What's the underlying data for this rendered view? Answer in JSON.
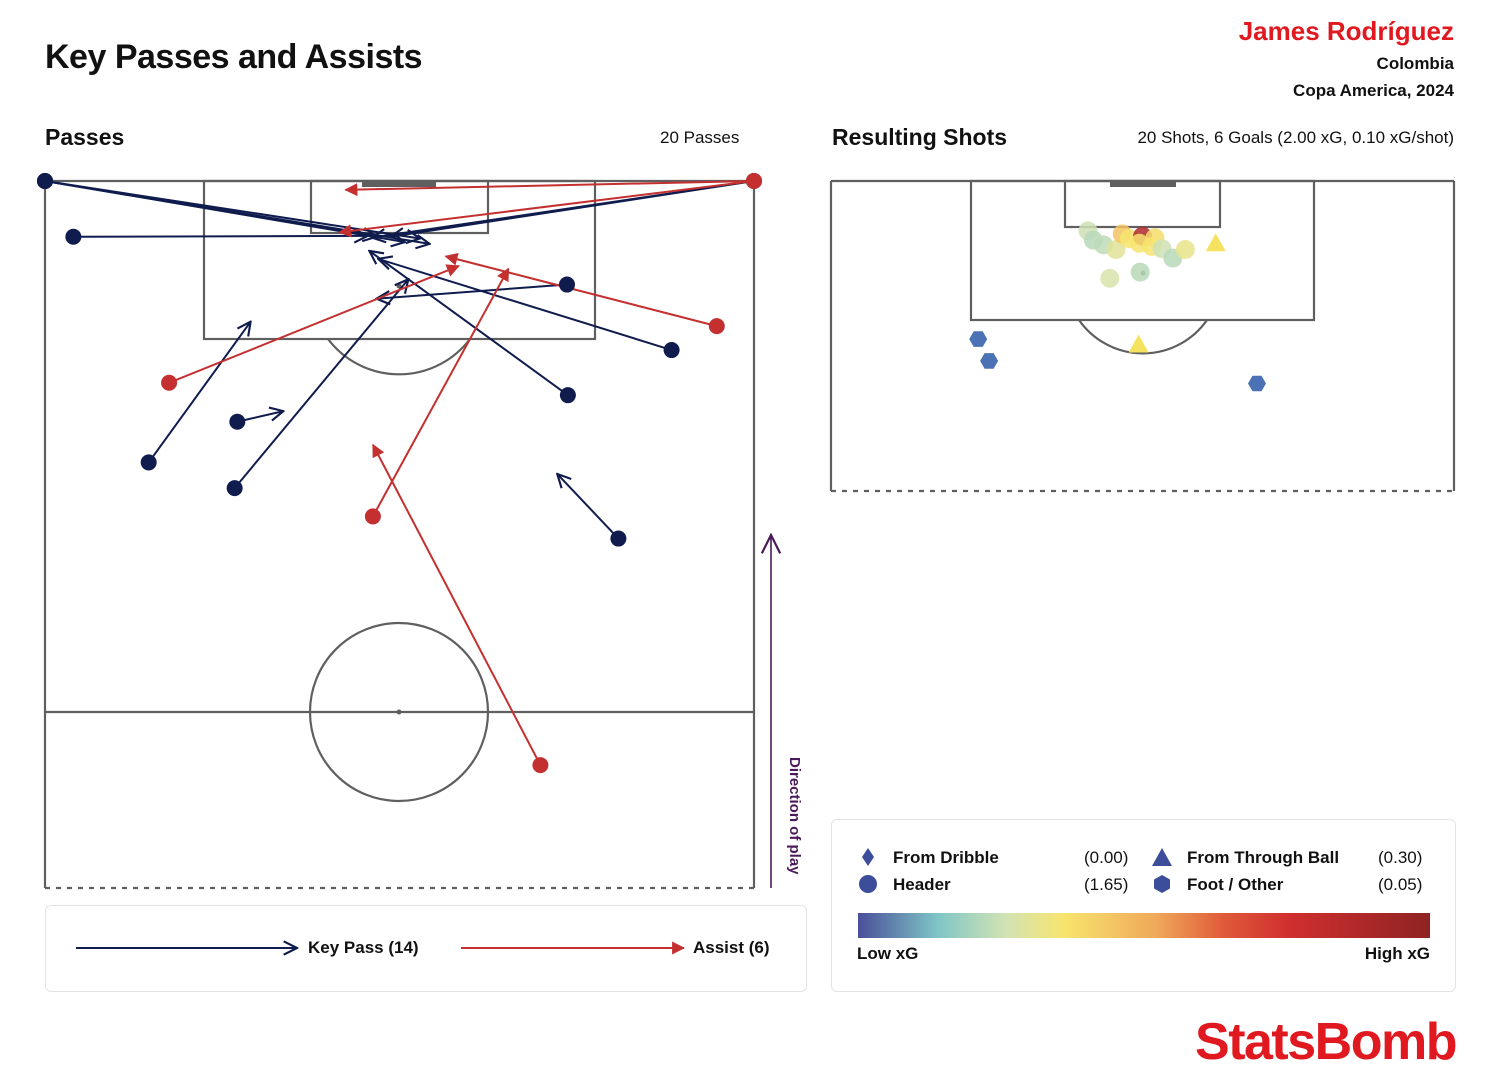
{
  "header": {
    "title": "Key Passes and Assists",
    "player": "James Rodríguez",
    "team": "Colombia",
    "competition": "Copa America, 2024"
  },
  "passes_panel": {
    "title": "Passes",
    "count_label": "20 Passes",
    "direction_label": "Direction of play"
  },
  "shots_panel": {
    "title": "Resulting Shots",
    "summary": "20 Shots, 6 Goals (2.00 xG, 0.10 xG/shot)"
  },
  "pass_legend": {
    "key_pass_label": "Key Pass (14)",
    "assist_label": "Assist (6)"
  },
  "shot_legend": {
    "from_dribble": {
      "label": "From Dribble",
      "value": "(0.00)"
    },
    "header": {
      "label": "Header",
      "value": "(1.65)"
    },
    "from_through_ball": {
      "label": "From Through Ball",
      "value": "(0.30)"
    },
    "foot_other": {
      "label": "Foot / Other",
      "value": "(0.05)"
    },
    "low_label": "Low xG",
    "high_label": "High xG"
  },
  "brand": "StatsBomb",
  "colors": {
    "key_pass": "#0f1c4d",
    "assist": "#c3302f",
    "accent": "#e0181f",
    "pitch_line": "#5f5f5f",
    "direction_arrow": "#4b1a5a",
    "marker_legend": "#3c4d9a",
    "xg_scale": [
      "#4a4f9a",
      "#7fc6c6",
      "#d3e3b3",
      "#f7e46e",
      "#f0a95a",
      "#e05a3a",
      "#d12f2f",
      "#8f2323"
    ]
  },
  "chart_data": [
    {
      "type": "scatter",
      "subtype": "pass-arrows",
      "title": "Passes",
      "units": "StatsBomb pitch coordinates (length 120, width 80); attacking toward y_len = 120",
      "passes": [
        {
          "kind": "key_pass",
          "start": [
            120.0,
            0.0
          ],
          "end": [
            113.7,
            37.4
          ]
        },
        {
          "kind": "key_pass",
          "start": [
            113.7,
            3.2
          ],
          "end": [
            113.8,
            36.4
          ]
        },
        {
          "kind": "key_pass",
          "start": [
            120.0,
            0.0
          ],
          "end": [
            113.5,
            42.3
          ]
        },
        {
          "kind": "key_pass",
          "start": [
            120.0,
            0.0
          ],
          "end": [
            113.1,
            40.6
          ]
        },
        {
          "kind": "key_pass",
          "start": [
            120.0,
            80.0
          ],
          "end": [
            113.6,
            36.9
          ]
        },
        {
          "kind": "key_pass",
          "start": [
            120.0,
            80.0
          ],
          "end": [
            113.7,
            39.0
          ]
        },
        {
          "kind": "key_pass",
          "start": [
            100.9,
            70.7
          ],
          "end": [
            111.2,
            37.6
          ]
        },
        {
          "kind": "key_pass",
          "start": [
            95.8,
            59.0
          ],
          "end": [
            112.1,
            36.6
          ]
        },
        {
          "kind": "key_pass",
          "start": [
            88.2,
            11.7
          ],
          "end": [
            104.1,
            23.2
          ]
        },
        {
          "kind": "key_pass",
          "start": [
            85.3,
            21.4
          ],
          "end": [
            108.9,
            41.0
          ]
        },
        {
          "kind": "key_pass",
          "start": [
            108.3,
            58.9
          ],
          "end": [
            106.7,
            37.4
          ]
        },
        {
          "kind": "key_pass",
          "start": [
            92.8,
            21.7
          ],
          "end": [
            94.0,
            26.9
          ]
        },
        {
          "kind": "key_pass",
          "start": [
            79.6,
            64.7
          ],
          "end": [
            86.9,
            57.8
          ]
        },
        {
          "kind": "key_pass",
          "start": [
            120.0,
            0.0
          ],
          "end": [
            112.9,
            43.4
          ]
        },
        {
          "kind": "assist",
          "start": [
            120.0,
            80.0
          ],
          "end": [
            114.2,
            33.2
          ]
        },
        {
          "kind": "assist",
          "start": [
            97.2,
            14.0
          ],
          "end": [
            110.4,
            46.7
          ]
        },
        {
          "kind": "assist",
          "start": [
            103.6,
            75.8
          ],
          "end": [
            111.5,
            45.2
          ]
        },
        {
          "kind": "assist",
          "start": [
            82.1,
            37.0
          ],
          "end": [
            110.1,
            52.3
          ]
        },
        {
          "kind": "assist",
          "start": [
            54.0,
            55.9
          ],
          "end": [
            90.2,
            37.0
          ]
        },
        {
          "kind": "assist",
          "start": [
            120.0,
            80.0
          ],
          "end": [
            119.0,
            33.9
          ]
        }
      ]
    },
    {
      "type": "scatter",
      "subtype": "shot-map",
      "title": "Resulting Shots",
      "units": "StatsBomb pitch coordinates; xg_level 0 = low, 1 = high on the colour scale",
      "shots": [
        {
          "x": 113.6,
          "y": 33.0,
          "shape": "circle",
          "xg_level": 0.25
        },
        {
          "x": 112.4,
          "y": 33.7,
          "shape": "circle",
          "xg_level": 0.22
        },
        {
          "x": 111.8,
          "y": 35.0,
          "shape": "circle",
          "xg_level": 0.23
        },
        {
          "x": 111.2,
          "y": 36.6,
          "shape": "circle",
          "xg_level": 0.3
        },
        {
          "x": 113.2,
          "y": 37.4,
          "shape": "circle",
          "xg_level": 0.45
        },
        {
          "x": 112.6,
          "y": 38.3,
          "shape": "circle",
          "xg_level": 0.36
        },
        {
          "x": 112.9,
          "y": 40.0,
          "shape": "circle",
          "xg_level": 0.88
        },
        {
          "x": 112.7,
          "y": 41.6,
          "shape": "circle",
          "xg_level": 0.38
        },
        {
          "x": 111.6,
          "y": 41.2,
          "shape": "circle",
          "xg_level": 0.36
        },
        {
          "x": 111.3,
          "y": 42.5,
          "shape": "circle",
          "xg_level": 0.25
        },
        {
          "x": 110.1,
          "y": 43.9,
          "shape": "circle",
          "xg_level": 0.22
        },
        {
          "x": 111.2,
          "y": 45.5,
          "shape": "circle",
          "xg_level": 0.32
        },
        {
          "x": 107.5,
          "y": 35.8,
          "shape": "circle",
          "xg_level": 0.27
        },
        {
          "x": 108.3,
          "y": 39.7,
          "shape": "circle",
          "xg_level": 0.22
        },
        {
          "x": 112.0,
          "y": 39.6,
          "shape": "circle",
          "xg_level": 0.36
        },
        {
          "x": 112.0,
          "y": 49.4,
          "shape": "triangle",
          "xg_level": 0.5
        },
        {
          "x": 99.0,
          "y": 39.5,
          "shape": "triangle",
          "xg_level": 0.5
        },
        {
          "x": 99.7,
          "y": 18.9,
          "shape": "hexagon",
          "xg_level": 0.0
        },
        {
          "x": 96.9,
          "y": 20.3,
          "shape": "hexagon",
          "xg_level": 0.0
        },
        {
          "x": 94.0,
          "y": 54.7,
          "shape": "hexagon",
          "xg_level": 0.0
        }
      ]
    }
  ]
}
